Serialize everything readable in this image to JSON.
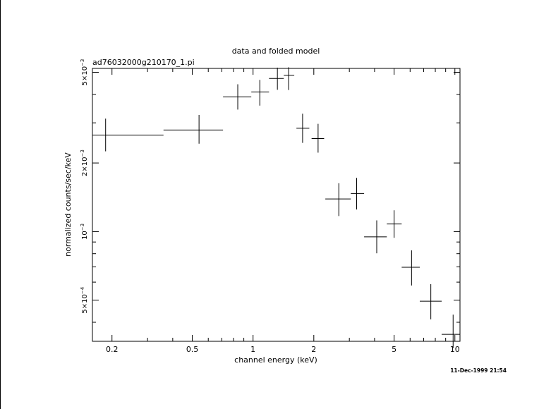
{
  "chart_data": {
    "type": "scatter",
    "title": "data and folded model",
    "subtitle": "ad76032000g210170_1.pi",
    "xlabel": "channel energy (keV)",
    "ylabel": "normalized counts/sec/keV",
    "xscale": "log",
    "yscale": "log",
    "xlim": [
      0.16,
      10.6
    ],
    "ylim": [
      0.00033,
      0.0052
    ],
    "x_ticks": [
      {
        "value": 0.2,
        "label": "0.2"
      },
      {
        "value": 0.5,
        "label": "0.5"
      },
      {
        "value": 1,
        "label": "1"
      },
      {
        "value": 2,
        "label": "2"
      },
      {
        "value": 5,
        "label": "5"
      },
      {
        "value": 10,
        "label": "10"
      }
    ],
    "y_ticks": [
      {
        "value": 0.0005,
        "mant": "5×10",
        "exp": "−4"
      },
      {
        "value": 0.001,
        "mant": "10",
        "exp": "−3"
      },
      {
        "value": 0.002,
        "mant": "2×10",
        "exp": "−3"
      },
      {
        "value": 0.005,
        "mant": "5×10",
        "exp": "−3"
      }
    ],
    "grid": false,
    "series": [
      {
        "points": [
          {
            "x": 0.186,
            "xlo": 0.16,
            "xhi": 0.36,
            "y": 0.00265,
            "ylo": 0.00225,
            "yhi": 0.00313
          },
          {
            "x": 0.54,
            "xlo": 0.36,
            "xhi": 0.71,
            "y": 0.00279,
            "ylo": 0.00243,
            "yhi": 0.00325
          },
          {
            "x": 0.84,
            "xlo": 0.71,
            "xhi": 0.98,
            "y": 0.0039,
            "ylo": 0.00343,
            "yhi": 0.00443
          },
          {
            "x": 1.08,
            "xlo": 0.98,
            "xhi": 1.2,
            "y": 0.0041,
            "ylo": 0.00357,
            "yhi": 0.00463
          },
          {
            "x": 1.32,
            "xlo": 1.2,
            "xhi": 1.42,
            "y": 0.0047,
            "ylo": 0.00419,
            "yhi": 0.00524
          },
          {
            "x": 1.5,
            "xlo": 1.42,
            "xhi": 1.6,
            "y": 0.00485,
            "ylo": 0.00418,
            "yhi": 0.00526
          },
          {
            "x": 1.76,
            "xlo": 1.64,
            "xhi": 1.9,
            "y": 0.00284,
            "ylo": 0.00245,
            "yhi": 0.00329
          },
          {
            "x": 2.1,
            "xlo": 1.95,
            "xhi": 2.25,
            "y": 0.00256,
            "ylo": 0.00222,
            "yhi": 0.00297
          },
          {
            "x": 2.66,
            "xlo": 2.28,
            "xhi": 3.05,
            "y": 0.00139,
            "ylo": 0.00117,
            "yhi": 0.00163
          },
          {
            "x": 3.26,
            "xlo": 3.05,
            "xhi": 3.55,
            "y": 0.00147,
            "ylo": 0.00125,
            "yhi": 0.00172
          },
          {
            "x": 4.1,
            "xlo": 3.55,
            "xhi": 4.6,
            "y": 0.000948,
            "ylo": 0.000803,
            "yhi": 0.00112
          },
          {
            "x": 5.0,
            "xlo": 4.6,
            "xhi": 5.45,
            "y": 0.00108,
            "ylo": 0.000939,
            "yhi": 0.00124
          },
          {
            "x": 6.1,
            "xlo": 5.45,
            "xhi": 6.7,
            "y": 0.000697,
            "ylo": 0.00058,
            "yhi": 0.000827
          },
          {
            "x": 7.6,
            "xlo": 6.7,
            "xhi": 8.6,
            "y": 0.000495,
            "ylo": 0.000412,
            "yhi": 0.000588
          },
          {
            "x": 9.8,
            "xlo": 8.6,
            "xhi": 10.6,
            "y": 0.000354,
            "ylo": 0.000308,
            "yhi": 0.000432
          }
        ]
      }
    ],
    "footer": "11-Dec-1999 21:54"
  }
}
